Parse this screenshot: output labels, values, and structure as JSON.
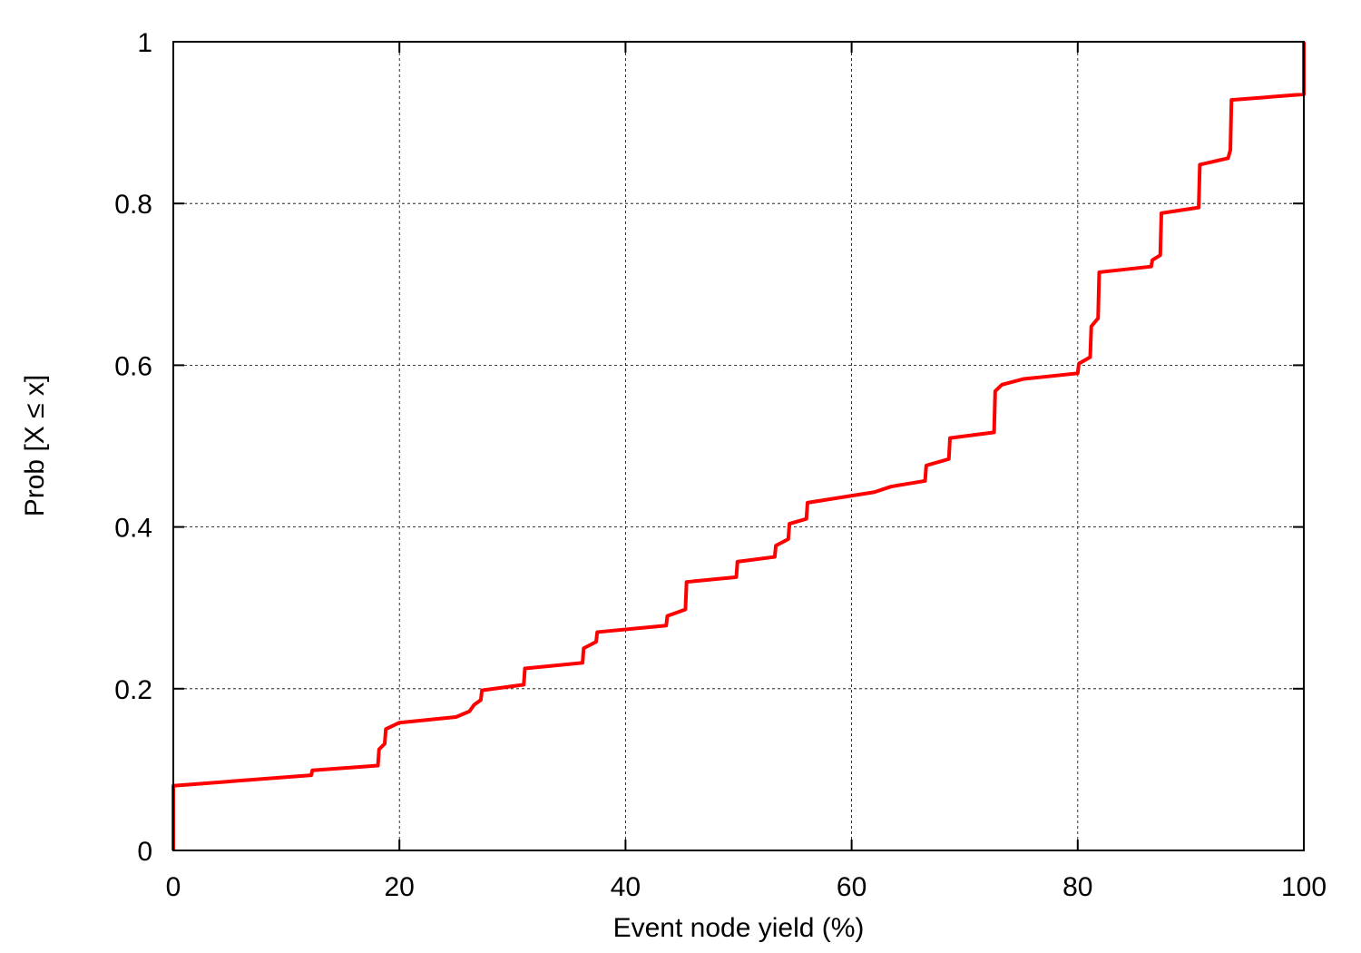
{
  "chart_data": {
    "type": "line",
    "x_label": "Event node yield (%)",
    "y_label": "Prob [X ≤ x]",
    "xlim": [
      0,
      100
    ],
    "ylim": [
      0,
      1
    ],
    "xticks": [
      0,
      20,
      40,
      60,
      80,
      100
    ],
    "yticks": [
      0,
      0.2,
      0.4,
      0.6,
      0.8,
      1
    ],
    "grid": true,
    "series": [
      {
        "color": "#ff0000",
        "x": [
          0,
          0,
          12.2,
          12.3,
          18.1,
          18.2,
          18.7,
          18.8,
          20,
          25,
          26.2,
          26.6,
          27.2,
          27.3,
          31,
          31.1,
          36.2,
          36.3,
          37.4,
          37.5,
          43.6,
          43.7,
          45.3,
          45.4,
          49.8,
          49.9,
          53.2,
          53.3,
          54.4,
          54.5,
          56,
          56.1,
          62,
          63.5,
          66.5,
          66.6,
          68.6,
          68.7,
          72.6,
          72.7,
          73.3,
          75.2,
          80,
          80.1,
          81.1,
          81.2,
          81.8,
          81.9,
          86.5,
          86.6,
          87.3,
          87.4,
          90.7,
          90.8,
          93.3,
          93.5,
          93.6,
          100,
          100
        ],
        "values": [
          0,
          0.08,
          0.093,
          0.099,
          0.105,
          0.125,
          0.132,
          0.15,
          0.158,
          0.165,
          0.172,
          0.18,
          0.186,
          0.198,
          0.205,
          0.225,
          0.232,
          0.25,
          0.258,
          0.27,
          0.278,
          0.29,
          0.298,
          0.332,
          0.338,
          0.357,
          0.363,
          0.377,
          0.385,
          0.404,
          0.41,
          0.43,
          0.443,
          0.45,
          0.457,
          0.476,
          0.484,
          0.51,
          0.517,
          0.568,
          0.576,
          0.583,
          0.59,
          0.602,
          0.61,
          0.648,
          0.658,
          0.715,
          0.722,
          0.73,
          0.736,
          0.788,
          0.795,
          0.848,
          0.856,
          0.866,
          0.928,
          0.935,
          1
        ]
      }
    ]
  }
}
